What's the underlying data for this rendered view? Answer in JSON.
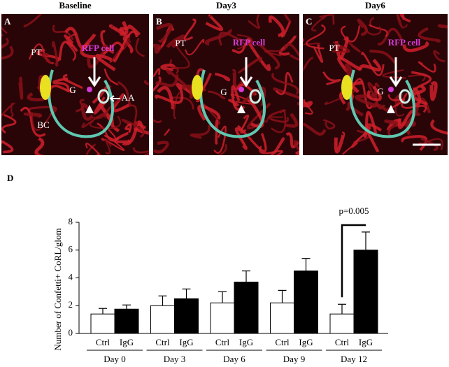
{
  "panels": [
    {
      "letter": "A",
      "title": "Baseline",
      "labels": [
        "PT",
        "RFP cell",
        "G",
        "AA",
        "BC"
      ]
    },
    {
      "letter": "B",
      "title": "Day3",
      "labels": [
        "PT",
        "RFP cell",
        "G"
      ]
    },
    {
      "letter": "C",
      "title": "Day6",
      "labels": [
        "PT",
        "RFP cell",
        "G"
      ]
    }
  ],
  "chart_data": {
    "type": "bar",
    "panel_label": "D",
    "y_label": "Number of Confetti+ CoRL/glom",
    "categories": [
      "Day 0",
      "Day 3",
      "Day 6",
      "Day 9",
      "Day 12"
    ],
    "series": [
      {
        "name": "Ctrl",
        "color": "#ffffff",
        "values": [
          1.4,
          2.0,
          2.2,
          2.2,
          1.4
        ],
        "errors": [
          0.4,
          0.7,
          0.8,
          0.9,
          0.7
        ]
      },
      {
        "name": "IgG",
        "color": "#000000",
        "values": [
          1.75,
          2.5,
          3.7,
          4.5,
          6.0
        ],
        "errors": [
          0.3,
          0.7,
          0.8,
          0.9,
          1.3
        ]
      }
    ],
    "ylim": [
      0,
      8
    ],
    "yticks": [
      0,
      2,
      4,
      6,
      8
    ],
    "annotation": "p=0.005"
  }
}
